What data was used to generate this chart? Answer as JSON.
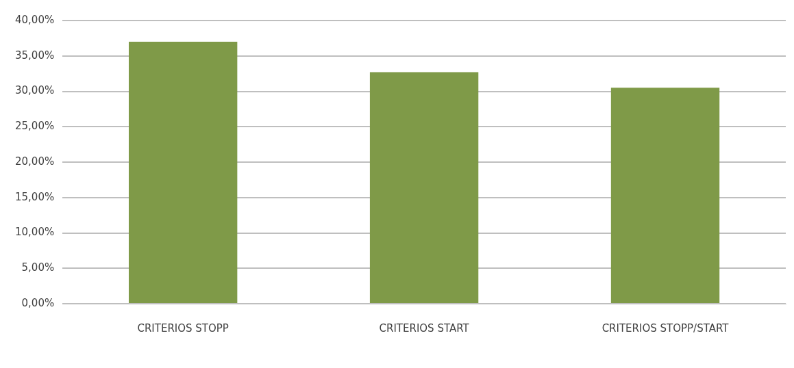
{
  "chart_data": {
    "type": "bar",
    "categories": [
      "CRITERIOS STOPP",
      "CRITERIOS START",
      "CRITERIOS STOPP/START"
    ],
    "values": [
      37.0,
      32.7,
      30.5
    ],
    "color": "#7f9a48",
    "ylim": [
      0,
      40
    ],
    "yticks": [
      {
        "value": 0,
        "label": "0,00%"
      },
      {
        "value": 5,
        "label": "5,00%"
      },
      {
        "value": 10,
        "label": "10,00%"
      },
      {
        "value": 15,
        "label": "15,00%"
      },
      {
        "value": 20,
        "label": "20,00%"
      },
      {
        "value": 25,
        "label": "25,00%"
      },
      {
        "value": 30,
        "label": "30,00%"
      },
      {
        "value": 35,
        "label": "35,00%"
      },
      {
        "value": 40,
        "label": "40,00%"
      }
    ],
    "grid": "y",
    "legend": false
  }
}
